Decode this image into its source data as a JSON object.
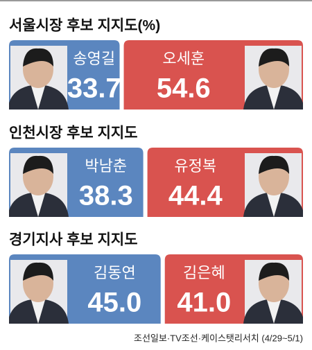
{
  "chart_data": [
    {
      "type": "bar",
      "title": "서울시장 후보 지지도(%)",
      "series": [
        {
          "name": "송영길",
          "color": "#5b86bf",
          "values": [
            33.7
          ]
        },
        {
          "name": "오세훈",
          "color": "#d9534f",
          "values": [
            54.6
          ]
        }
      ]
    },
    {
      "type": "bar",
      "title": "인천시장 후보 지지도",
      "series": [
        {
          "name": "박남춘",
          "color": "#5b86bf",
          "values": [
            38.3
          ]
        },
        {
          "name": "유정복",
          "color": "#d9534f",
          "values": [
            44.4
          ]
        }
      ]
    },
    {
      "type": "bar",
      "title": "경기지사 후보 지지도",
      "series": [
        {
          "name": "김동연",
          "color": "#5b86bf",
          "values": [
            45.0
          ],
          "value_labels": [
            "45.0"
          ]
        },
        {
          "name": "김은혜",
          "color": "#d9534f",
          "values": [
            41.0
          ],
          "value_labels": [
            "41.0"
          ]
        }
      ]
    }
  ],
  "source": "조선일보·TV조선·케이스탯리서치 (4/29~5/1)"
}
